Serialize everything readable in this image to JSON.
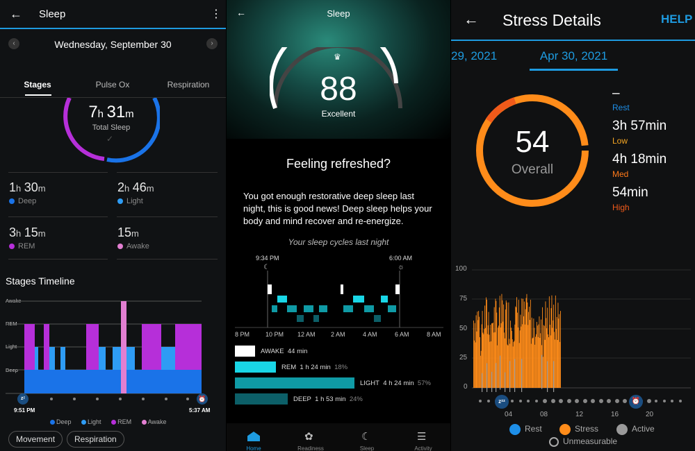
{
  "sleep1": {
    "title": "Sleep",
    "date": "Wednesday, September 30",
    "tabs": [
      "Stages",
      "Pulse Ox",
      "Respiration"
    ],
    "total": {
      "h": "7",
      "m": "31",
      "label": "Total Sleep"
    },
    "stats": [
      {
        "h": "1",
        "m": "30",
        "label": "Deep",
        "color": "#1a73e8"
      },
      {
        "h": "2",
        "m": "46",
        "label": "Light",
        "color": "#2e9cf4"
      },
      {
        "h": "3",
        "m": "15",
        "label": "REM",
        "color": "#b62fd9"
      },
      {
        "h": "",
        "m": "15",
        "label": "Awake",
        "color": "#e27fd1"
      }
    ],
    "unit_h": "h",
    "unit_m": "m",
    "timeline_title": "Stages Timeline",
    "levels": [
      "Awake",
      "REM",
      "Light",
      "Deep"
    ],
    "start_time": "9:51 PM",
    "end_time": "5:37 AM",
    "legend": [
      "Deep",
      "Light",
      "REM",
      "Awake"
    ],
    "pills": [
      "Movement",
      "Respiration"
    ]
  },
  "sleep2": {
    "title": "Sleep",
    "score": "88",
    "score_label": "Excellent",
    "headline": "Feeling refreshed?",
    "body": "You got enough restorative deep sleep last night, this is good news! Deep sleep helps your body and mind recover and re-energize.",
    "cycles_title": "Your sleep cycles last night",
    "start": "9:34 PM",
    "end": "6:00 AM",
    "axis": [
      "8 PM",
      "10 PM",
      "12 AM",
      "2 AM",
      "4 AM",
      "6 AM",
      "8 AM"
    ],
    "stages": [
      {
        "name": "AWAKE",
        "duration": "44 min",
        "pct": "",
        "fraction": 0.12,
        "color": "#ffffff"
      },
      {
        "name": "REM",
        "duration": "1 h 24 min",
        "pct": "18%",
        "fraction": 0.24,
        "color": "#19d6e6"
      },
      {
        "name": "LIGHT",
        "duration": "4 h 24 min",
        "pct": "57%",
        "fraction": 0.7,
        "color": "#0f9aa5"
      },
      {
        "name": "DEEP",
        "duration": "1 h 53 min",
        "pct": "24%",
        "fraction": 0.31,
        "color": "#0c5f68"
      }
    ],
    "nav": [
      "Home",
      "Readiness",
      "Sleep",
      "Activity"
    ]
  },
  "stress": {
    "title": "Stress Details",
    "help": "HELP",
    "prev_date": "29, 2021",
    "date": "Apr 30, 2021",
    "overall": "54",
    "overall_label": "Overall",
    "rest_value": "–",
    "rest_label": "Rest",
    "low_value": "3h 57min",
    "low_label": "Low",
    "med_value": "4h 18min",
    "med_label": "Med",
    "high_value": "54min",
    "high_label": "High",
    "y_ticks": [
      "100",
      "75",
      "50",
      "25",
      "0"
    ],
    "x_ticks": [
      "04",
      "08",
      "12",
      "16",
      "20"
    ],
    "legend": [
      "Rest",
      "Stress",
      "Active",
      "Unmeasurable"
    ],
    "colors": {
      "rest": "#1e8fe8",
      "stress": "#ff8c1a",
      "active": "#9a9a9a",
      "low": "#f5a623",
      "med": "#ff7a1a",
      "high": "#f05a1a"
    }
  }
}
